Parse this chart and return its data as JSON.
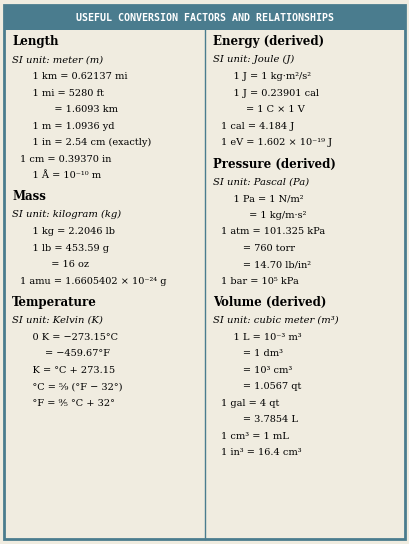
{
  "title": "USEFUL CONVERSION FACTORS AND RELATIONSHIPS",
  "title_bg": "#4a7c8e",
  "title_color": "#ffffff",
  "bg_color": "#f0ece0",
  "border_color": "#4a7c8e",
  "left_sections": [
    {
      "header": "Length",
      "si_unit": "SI unit: meter (m)",
      "lines": [
        "    1 km = 0.62137 mi",
        "    1 mi = 5280 ft",
        "           = 1.6093 km",
        "    1 m = 1.0936 yd",
        "    1 in = 2.54 cm (exactly)",
        "1 cm = 0.39370 in",
        "    1 Å = 10⁻¹⁰ m"
      ]
    },
    {
      "header": "Mass",
      "si_unit": "SI unit: kilogram (kg)",
      "lines": [
        "    1 kg = 2.2046 lb",
        "    1 lb = 453.59 g",
        "          = 16 oz",
        "1 amu = 1.6605402 × 10⁻²⁴ g"
      ]
    },
    {
      "header": "Temperature",
      "si_unit": "SI unit: Kelvin (K)",
      "lines": [
        "    0 K = −273.15°C",
        "        = −459.67°F",
        "    K = °C + 273.15",
        "    °C = ⁵⁄₉ (°F − 32°)",
        "    °F = ⁹⁄₅ °C + 32°"
      ]
    }
  ],
  "right_sections": [
    {
      "header": "Energy (derived)",
      "si_unit": "SI unit: Joule (J)",
      "lines": [
        "    1 J = 1 kg·m²/s²",
        "    1 J = 0.23901 cal",
        "        = 1 C × 1 V",
        "1 cal = 4.184 J",
        "1 eV = 1.602 × 10⁻¹⁹ J"
      ]
    },
    {
      "header": "Pressure (derived)",
      "si_unit": "SI unit: Pascal (Pa)",
      "lines": [
        "    1 Pa = 1 N/m²",
        "         = 1 kg/m·s²",
        "1 atm = 101.325 kPa",
        "       = 760 torr",
        "       = 14.70 lb/in²",
        "1 bar = 10⁵ kPa"
      ]
    },
    {
      "header": "Volume (derived)",
      "si_unit": "SI unit: cubic meter (m³)",
      "lines": [
        "    1 L = 10⁻³ m³",
        "       = 1 dm³",
        "       = 10³ cm³",
        "       = 1.0567 qt",
        "1 gal = 4 qt",
        "       = 3.7854 L",
        "1 cm³ = 1 mL",
        "1 in³ = 16.4 cm³"
      ]
    }
  ]
}
